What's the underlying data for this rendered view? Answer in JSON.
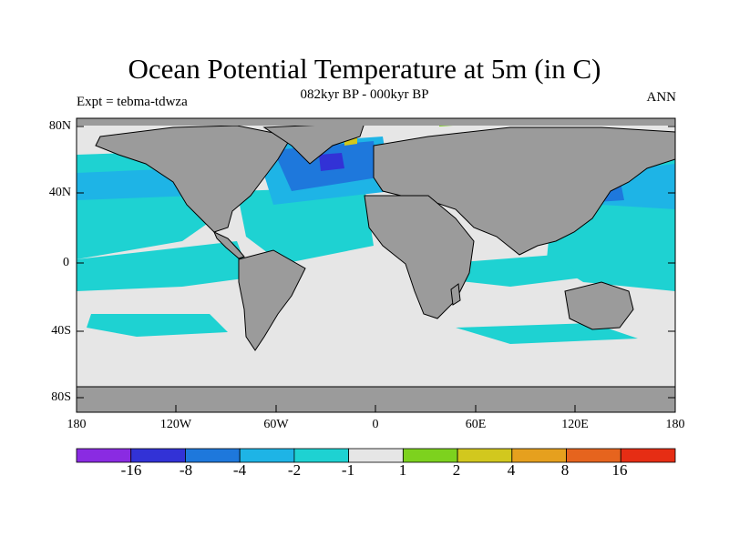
{
  "title": "Ocean Potential Temperature at 5m (in C)",
  "subtitle": "082kyr BP - 000kyr BP",
  "left_label": "Expt = tebma-tdwza",
  "right_label": "ANN",
  "lat_ticks": [
    "80N",
    "40N",
    "0",
    "40S",
    "80S"
  ],
  "lon_ticks": [
    "180",
    "120W",
    "60W",
    "0",
    "60E",
    "120E",
    "180"
  ],
  "colorbar": {
    "labels": [
      "-16",
      "-8",
      "-4",
      "-2",
      "-1",
      "1",
      "2",
      "4",
      "8",
      "16"
    ],
    "colors": [
      "#8a2be2",
      "#3232d6",
      "#1e78dc",
      "#1eb4e6",
      "#1ed2d2",
      "#e6e6e6",
      "#7dd21e",
      "#d2c81e",
      "#e6a01e",
      "#e6641e",
      "#e62d14"
    ]
  },
  "land_color": "#9b9b9b",
  "chart_data": {
    "type": "heatmap",
    "title": "Ocean Potential Temperature at 5m (in C)",
    "subtitle": "082kyr BP - 000kyr BP",
    "xlim": [
      -180,
      180
    ],
    "ylim": [
      -90,
      90
    ],
    "contour_levels": [
      -16,
      -8,
      -4,
      -2,
      -1,
      1,
      2,
      4,
      8,
      16
    ]
  }
}
